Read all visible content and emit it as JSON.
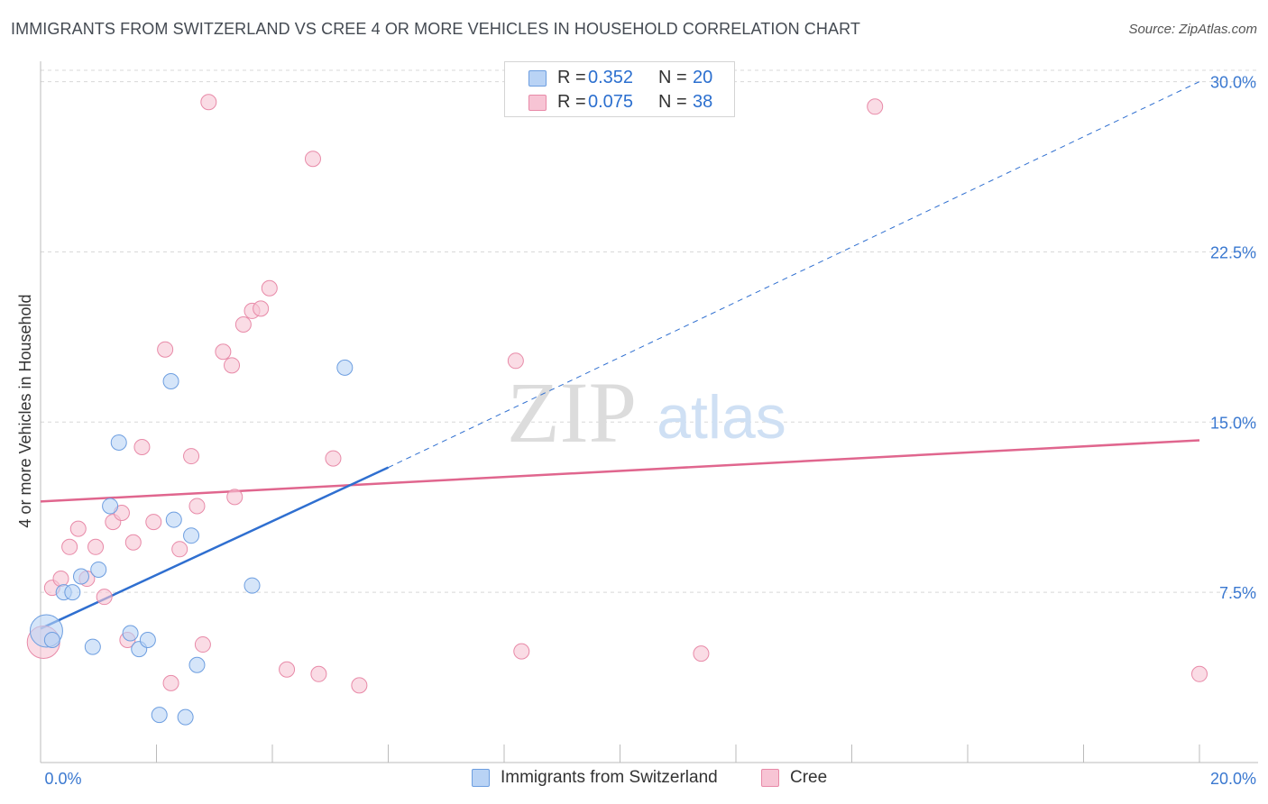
{
  "title": "IMMIGRANTS FROM SWITZERLAND VS CREE 4 OR MORE VEHICLES IN HOUSEHOLD CORRELATION CHART",
  "source": "Source: ZipAtlas.com",
  "watermark": {
    "zip": "ZIP",
    "atlas": "atlas"
  },
  "legend": {
    "r_label": "R =",
    "n_label": "N =",
    "series": [
      {
        "name": "Immigrants from Switzerland",
        "r": "0.352",
        "n": "20"
      },
      {
        "name": "Cree",
        "r": "0.075",
        "n": "38"
      }
    ]
  },
  "colors": {
    "blue_fill": "#b9d3f5",
    "blue_stroke": "#6d9ee0",
    "blue_line": "#2f6fd0",
    "pink_fill": "#f7c4d4",
    "pink_stroke": "#e88aa8",
    "pink_line": "#e0668e",
    "grid": "#d8d8d8",
    "tick_text": "#3a78d0"
  },
  "chart_data": {
    "type": "scatter",
    "title": "IMMIGRANTS FROM SWITZERLAND VS CREE 4 OR MORE VEHICLES IN HOUSEHOLD CORRELATION CHART",
    "xlabel": "",
    "ylabel": "4 or more Vehicles in Household",
    "xlim": [
      0,
      20
    ],
    "ylim": [
      0,
      30.5
    ],
    "x_tick_labels": [
      "0.0%",
      "20.0%"
    ],
    "y_ticks": [
      7.5,
      15.0,
      22.5,
      30.0
    ],
    "y_tick_labels": [
      "7.5%",
      "15.0%",
      "22.5%",
      "30.0%"
    ],
    "series": [
      {
        "name": "Immigrants from Switzerland",
        "points": [
          {
            "x": 0.1,
            "y": 5.8,
            "big": true
          },
          {
            "x": 0.2,
            "y": 5.4
          },
          {
            "x": 0.4,
            "y": 7.5
          },
          {
            "x": 0.55,
            "y": 7.5
          },
          {
            "x": 0.7,
            "y": 8.2
          },
          {
            "x": 0.9,
            "y": 5.1
          },
          {
            "x": 1.0,
            "y": 8.5
          },
          {
            "x": 1.2,
            "y": 11.3
          },
          {
            "x": 1.35,
            "y": 14.1
          },
          {
            "x": 1.55,
            "y": 5.7
          },
          {
            "x": 1.7,
            "y": 5.0
          },
          {
            "x": 1.85,
            "y": 5.4
          },
          {
            "x": 2.05,
            "y": 2.1
          },
          {
            "x": 2.25,
            "y": 16.8
          },
          {
            "x": 2.3,
            "y": 10.7
          },
          {
            "x": 2.5,
            "y": 2.0
          },
          {
            "x": 2.6,
            "y": 10.0
          },
          {
            "x": 2.7,
            "y": 4.3
          },
          {
            "x": 3.65,
            "y": 7.8
          },
          {
            "x": 5.25,
            "y": 17.4
          }
        ],
        "trend": {
          "x0": 0,
          "y0": 5.9,
          "x1": 6.0,
          "y1": 13.0,
          "dashed_to_x": 20,
          "dashed_to_y": 30.0
        }
      },
      {
        "name": "Cree",
        "points": [
          {
            "x": 0.05,
            "y": 5.3,
            "big": true
          },
          {
            "x": 0.2,
            "y": 7.7
          },
          {
            "x": 0.35,
            "y": 8.1
          },
          {
            "x": 0.5,
            "y": 9.5
          },
          {
            "x": 0.65,
            "y": 10.3
          },
          {
            "x": 0.8,
            "y": 8.1
          },
          {
            "x": 0.95,
            "y": 9.5
          },
          {
            "x": 1.1,
            "y": 7.3
          },
          {
            "x": 1.25,
            "y": 10.6
          },
          {
            "x": 1.4,
            "y": 11.0
          },
          {
            "x": 1.5,
            "y": 5.4
          },
          {
            "x": 1.6,
            "y": 9.7
          },
          {
            "x": 1.75,
            "y": 13.9
          },
          {
            "x": 1.95,
            "y": 10.6
          },
          {
            "x": 2.15,
            "y": 18.2
          },
          {
            "x": 2.25,
            "y": 3.5
          },
          {
            "x": 2.4,
            "y": 9.4
          },
          {
            "x": 2.6,
            "y": 13.5
          },
          {
            "x": 2.7,
            "y": 11.3
          },
          {
            "x": 2.8,
            "y": 5.2
          },
          {
            "x": 2.9,
            "y": 29.1
          },
          {
            "x": 3.15,
            "y": 18.1
          },
          {
            "x": 3.3,
            "y": 17.5
          },
          {
            "x": 3.35,
            "y": 11.7
          },
          {
            "x": 3.5,
            "y": 19.3
          },
          {
            "x": 3.65,
            "y": 19.9
          },
          {
            "x": 3.8,
            "y": 20.0
          },
          {
            "x": 3.95,
            "y": 20.9
          },
          {
            "x": 4.25,
            "y": 4.1
          },
          {
            "x": 4.7,
            "y": 26.6
          },
          {
            "x": 4.8,
            "y": 3.9
          },
          {
            "x": 5.05,
            "y": 13.4
          },
          {
            "x": 5.5,
            "y": 3.4
          },
          {
            "x": 8.2,
            "y": 17.7
          },
          {
            "x": 8.3,
            "y": 4.9
          },
          {
            "x": 11.4,
            "y": 4.8
          },
          {
            "x": 14.4,
            "y": 28.9
          },
          {
            "x": 20.0,
            "y": 3.9
          }
        ],
        "trend": {
          "x0": 0,
          "y0": 11.5,
          "x1": 20,
          "y1": 14.2
        }
      }
    ]
  }
}
